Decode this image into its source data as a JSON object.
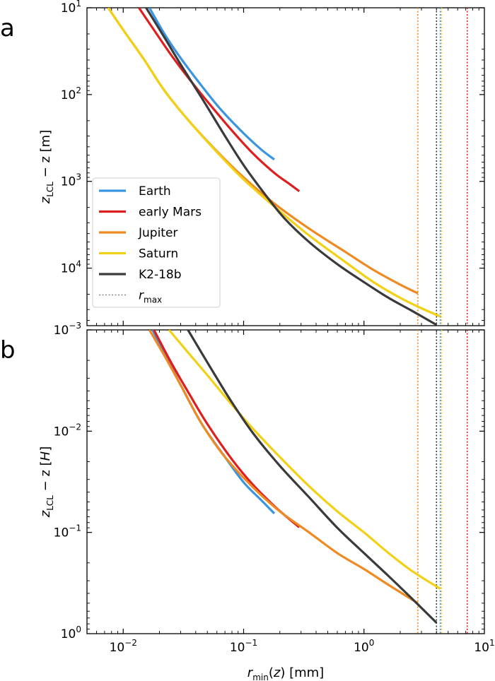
{
  "chart_data": {
    "type": "line",
    "x_axis": {
      "label_base": "r",
      "label_sub": "min",
      "label_rest": "(z) [mm]",
      "scale": "log",
      "xlim": [
        0.005,
        10
      ],
      "ticks": [
        {
          "value": 0.01,
          "base": "10",
          "exp": "−2"
        },
        {
          "value": 0.1,
          "base": "10",
          "exp": "−1"
        },
        {
          "value": 1,
          "base": "10",
          "exp": "0"
        },
        {
          "value": 10,
          "base": "10",
          "exp": "1"
        }
      ]
    },
    "series_meta": [
      {
        "name": "Earth",
        "color": "#3a95e0"
      },
      {
        "name": "early Mars",
        "color": "#de1f1f"
      },
      {
        "name": "Jupiter",
        "color": "#ef8a22"
      },
      {
        "name": "Saturn",
        "color": "#f2d015"
      },
      {
        "name": "K2-18b",
        "color": "#3a3a3a"
      }
    ],
    "legend": {
      "position": "lower-left of panel a",
      "rmax_base": "r",
      "rmax_sub": "max",
      "rmax_color": "#888888"
    },
    "panels": [
      {
        "letter": "a",
        "ylabel_pre": "z",
        "ylabel_sub": "LCL",
        "ylabel_rest": " − z [m]",
        "yscale": "log",
        "y_inverted": true,
        "ylim": [
          10,
          46000
        ],
        "yticks": [
          {
            "value": 10,
            "base": "10",
            "exp": "1"
          },
          {
            "value": 100,
            "base": "10",
            "exp": "2"
          },
          {
            "value": 1000,
            "base": "10",
            "exp": "3"
          },
          {
            "value": 10000,
            "base": "10",
            "exp": "4"
          }
        ],
        "series": [
          {
            "name": "Earth",
            "x": [
              0.0165,
              0.022,
              0.03,
              0.045,
              0.065,
              0.1,
              0.14,
              0.18
            ],
            "y": [
              10,
              20,
              38,
              80,
              150,
              280,
              430,
              560
            ]
          },
          {
            "name": "early Mars",
            "x": [
              0.0135,
              0.018,
              0.025,
              0.035,
              0.05,
              0.08,
              0.12,
              0.18,
              0.24,
              0.29
            ],
            "y": [
              10,
              18,
              35,
              65,
              120,
              260,
              480,
              800,
              1070,
              1300
            ]
          },
          {
            "name": "Jupiter",
            "x": [
              0.0075,
              0.01,
              0.015,
              0.022,
              0.035,
              0.06,
              0.1,
              0.18,
              0.35,
              0.7,
              1.2,
              2.0,
              2.8
            ],
            "y": [
              10,
              18,
              40,
              90,
              200,
              450,
              900,
              1800,
              3500,
              6500,
              10500,
              15500,
              19500
            ]
          },
          {
            "name": "Saturn",
            "x": [
              0.0075,
              0.01,
              0.015,
              0.022,
              0.035,
              0.06,
              0.1,
              0.18,
              0.35,
              0.7,
              1.2,
              2.0,
              3.0,
              4.3
            ],
            "y": [
              10,
              18,
              40,
              90,
              200,
              460,
              950,
              1950,
              4200,
              8500,
              14500,
              22000,
              29000,
              36000
            ]
          },
          {
            "name": "K2-18b",
            "x": [
              0.0155,
              0.022,
              0.03,
              0.045,
              0.07,
              0.1,
              0.15,
              0.22,
              0.35,
              0.6,
              1.0,
              1.6,
              2.5,
              4.0
            ],
            "y": [
              10,
              22,
              45,
              110,
              300,
              650,
              1400,
              2700,
              5000,
              9000,
              14500,
              22000,
              31000,
              45000
            ]
          }
        ],
        "rmax": [
          {
            "name": "Jupiter",
            "x": 2.8
          },
          {
            "name": "K2-18b",
            "x": 4.0
          },
          {
            "name": "Earth",
            "x": 4.3
          },
          {
            "name": "Saturn",
            "x": 4.4
          },
          {
            "name": "early Mars",
            "x": 7.2
          }
        ]
      },
      {
        "letter": "b",
        "ylabel_pre": "z",
        "ylabel_sub": "LCL",
        "ylabel_rest": " − z [H]",
        "yscale": "log",
        "y_inverted": true,
        "ylim": [
          0.001,
          1.0
        ],
        "yticks": [
          {
            "value": 0.001,
            "base": "10",
            "exp": "−3"
          },
          {
            "value": 0.01,
            "base": "10",
            "exp": "−2"
          },
          {
            "value": 0.1,
            "base": "10",
            "exp": "−1"
          },
          {
            "value": 1.0,
            "base": "10",
            "exp": "0"
          }
        ],
        "series": [
          {
            "name": "Earth",
            "x": [
              0.0175,
              0.022,
              0.03,
              0.045,
              0.07,
              0.1,
              0.14,
              0.18
            ],
            "y": [
              0.001,
              0.0017,
              0.0035,
              0.0085,
              0.018,
              0.032,
              0.048,
              0.065
            ]
          },
          {
            "name": "early Mars",
            "x": [
              0.018,
              0.025,
              0.035,
              0.05,
              0.08,
              0.12,
              0.18,
              0.24,
              0.29
            ],
            "y": [
              0.001,
              0.0021,
              0.0042,
              0.0085,
              0.019,
              0.034,
              0.055,
              0.074,
              0.089
            ]
          },
          {
            "name": "Jupiter",
            "x": [
              0.0165,
              0.022,
              0.03,
              0.045,
              0.07,
              0.12,
              0.2,
              0.35,
              0.6,
              1.0,
              1.6,
              2.8
            ],
            "y": [
              0.001,
              0.0018,
              0.0035,
              0.0085,
              0.018,
              0.036,
              0.062,
              0.1,
              0.16,
              0.23,
              0.33,
              0.5
            ]
          },
          {
            "name": "Saturn",
            "x": [
              0.024,
              0.035,
              0.05,
              0.08,
              0.12,
              0.2,
              0.35,
              0.6,
              1.0,
              1.6,
              2.5,
              4.3
            ],
            "y": [
              0.001,
              0.0017,
              0.0028,
              0.0055,
              0.0095,
              0.018,
              0.035,
              0.062,
              0.1,
              0.16,
              0.24,
              0.36
            ]
          },
          {
            "name": "K2-18b",
            "x": [
              0.0345,
              0.045,
              0.06,
              0.08,
              0.12,
              0.2,
              0.35,
              0.6,
              1.0,
              1.6,
              2.5,
              4.0
            ],
            "y": [
              0.001,
              0.0017,
              0.003,
              0.0052,
              0.0105,
              0.022,
              0.045,
              0.09,
              0.16,
              0.27,
              0.45,
              0.78
            ]
          }
        ],
        "rmax": [
          {
            "name": "Jupiter",
            "x": 2.8
          },
          {
            "name": "K2-18b",
            "x": 4.0
          },
          {
            "name": "Earth",
            "x": 4.3
          },
          {
            "name": "Saturn",
            "x": 4.4
          },
          {
            "name": "early Mars",
            "x": 7.2
          }
        ]
      }
    ]
  }
}
